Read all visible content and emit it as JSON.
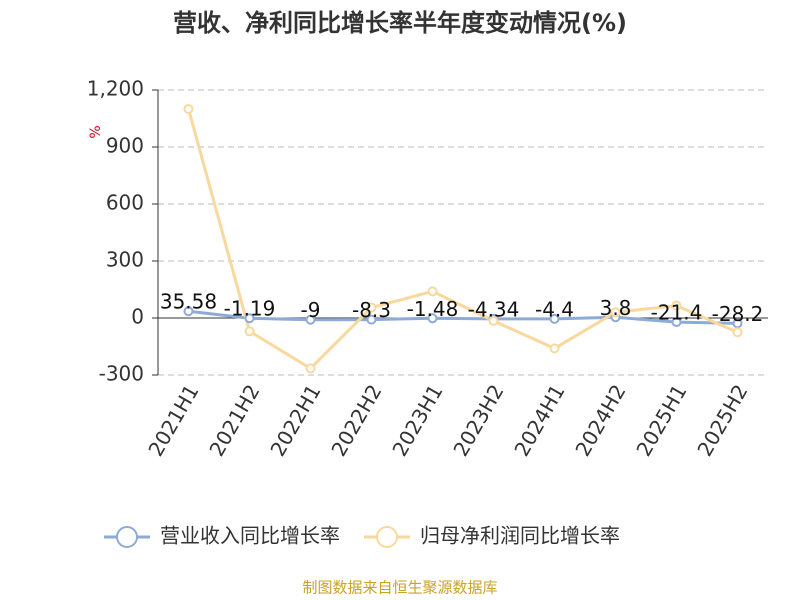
{
  "chart_data": {
    "type": "line",
    "title": "营收、净利同比增长率半年度变动情况(%)",
    "y_unit": "%",
    "source": "制图数据来自恒生聚源数据库",
    "categories": [
      "2021H1",
      "2021H2",
      "2022H1",
      "2022H2",
      "2023H1",
      "2023H2",
      "2024H1",
      "2024H2",
      "2025H1",
      "2025H2"
    ],
    "series": [
      {
        "name": "营业收入同比增长率",
        "color": "#8eaad6",
        "values": [
          35.58,
          -1.19,
          -9,
          -8.3,
          -1.48,
          -4.34,
          -4.4,
          3.8,
          -21.4,
          -28.2
        ],
        "show_labels": true
      },
      {
        "name": "归母净利润同比增长率",
        "color": "#f9d89e",
        "values": [
          1100,
          -70,
          -265,
          55,
          140,
          -15,
          -160,
          30,
          65,
          -75
        ],
        "show_labels": false
      }
    ],
    "ylim": [
      -300,
      1200
    ],
    "yticks": [
      -300,
      0,
      300,
      600,
      900,
      {
        "value": 1200,
        "label": "1,200"
      }
    ],
    "grid": true
  }
}
